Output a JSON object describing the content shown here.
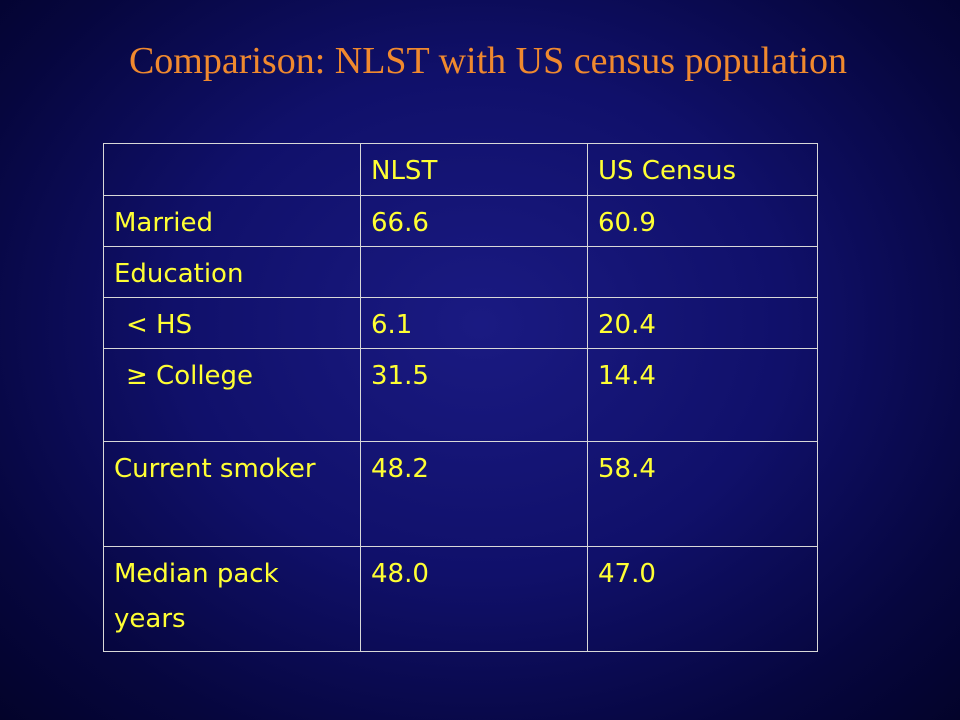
{
  "slide": {
    "title": "Comparison: NLST with US census population"
  },
  "table": {
    "headers": [
      "",
      "NLST",
      "US Census"
    ],
    "rows": [
      {
        "label": "Married",
        "nlst": "66.6",
        "census": "60.9"
      },
      {
        "label": "Education",
        "nlst": "",
        "census": ""
      },
      {
        "label": "< HS",
        "nlst": "6.1",
        "census": "20.4"
      },
      {
        "label": "≥ College",
        "nlst": "31.5",
        "census": "14.4"
      },
      {
        "label": "Current smoker",
        "nlst": "48.2",
        "census": "58.4"
      },
      {
        "label": "Median pack years",
        "nlst": "48.0",
        "census": "47.0"
      }
    ]
  },
  "colors": {
    "title": "#f0892e",
    "table_text": "#ffff33",
    "background": "#10106a",
    "grid": "#d8d8d8"
  }
}
